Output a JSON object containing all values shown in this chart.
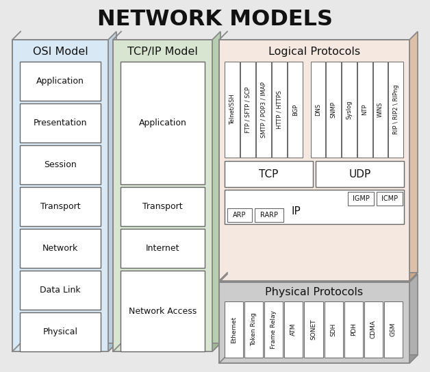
{
  "title": "NETWORK MODELS",
  "title_fontsize": 24,
  "bg_color": "#e8e8e8",
  "osi_bg": "#d8e8f4",
  "tcpip_bg": "#d8e5d0",
  "logical_bg": "#f5e8e0",
  "physical_bg": "#cccccc",
  "box_fc": "#ffffff",
  "box_ec": "#666666",
  "osi_3d_side": "#bfd0e0",
  "osi_3d_bot": "#a8c0d0",
  "tcp_3d_side": "#b8ceb0",
  "tcp_3d_bot": "#a0b898",
  "lp_3d_side": "#dcc0a8",
  "lp_3d_bot": "#c8a888",
  "pp_3d_side": "#b0b0b0",
  "pp_3d_bot": "#989898",
  "osi_layers": [
    "Application",
    "Presentation",
    "Session",
    "Transport",
    "Network",
    "Data Link",
    "Physical"
  ],
  "tcpip_layers": [
    "Application",
    "Transport",
    "Internet",
    "Network Access"
  ],
  "app_protocols_left": [
    "Telnet/SSH",
    "FTP / SFTP / SCP",
    "SMTP / POP3 / IMAP",
    "HTTP / HTTPS",
    "BGP"
  ],
  "app_protocols_right": [
    "DNS",
    "SNMP",
    "Syslog",
    "NTP",
    "WINS",
    "RIP \\ RIP2 \\ RIPng"
  ],
  "physical_protocols": [
    "Ethernet",
    "Token Ring",
    "Frame Relay",
    "ATM",
    "SONET",
    "SDH",
    "PDH",
    "CDMA",
    "GSM"
  ],
  "offset3d": 12
}
